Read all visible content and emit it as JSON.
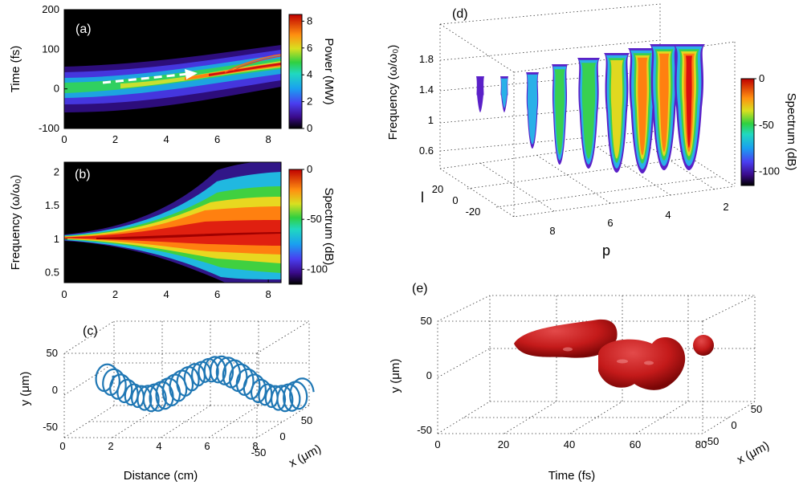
{
  "chart_data": [
    {
      "panel": "(a)",
      "type": "heatmap",
      "ylabel": "Time (fs)",
      "xlim": [
        0,
        8.5
      ],
      "ylim": [
        -100,
        200
      ],
      "xticks": [
        "0",
        "2",
        "4",
        "6",
        "8"
      ],
      "yticks": [
        "200",
        "100",
        "0",
        "-100"
      ],
      "colorbar": {
        "label": "Power (MW)",
        "range": [
          0,
          8.5
        ],
        "ticks": [
          "8",
          "6",
          "4",
          "2",
          "0"
        ]
      },
      "annotation": "dashed arrow tracing the pulse trajectory"
    },
    {
      "panel": "(b)",
      "type": "heatmap",
      "ylabel": "Frequency (ω/ω₀)",
      "xlim": [
        0,
        8.5
      ],
      "ylim": [
        0.35,
        2.15
      ],
      "xticks": [
        "0",
        "2",
        "4",
        "6",
        "8"
      ],
      "yticks": [
        "2",
        "1.5",
        "1",
        "0.5"
      ],
      "colorbar": {
        "label": "Spectrum (dB)",
        "range": [
          -115,
          0
        ],
        "ticks": [
          "0",
          "-50",
          "-100"
        ]
      }
    },
    {
      "panel": "(c)",
      "type": "line",
      "xlabel": "Distance (cm)",
      "ylabel": "y (μm)",
      "zlabel": "x (μm)",
      "xticks": [
        "0",
        "2",
        "4",
        "6",
        "8"
      ],
      "yticks": [
        "50",
        "0",
        "-50"
      ],
      "zticks": [
        "50",
        "0",
        "-50"
      ],
      "series": [
        {
          "color": "#1f77b4",
          "loops": 30
        }
      ]
    },
    {
      "panel": "(d)",
      "type": "heatmap",
      "ylabel": "Frequency (ω/ω₀)",
      "plabel": "p",
      "llabel": "l",
      "freq_ticks": [
        "1.8",
        "1.4",
        "1",
        "0.6"
      ],
      "l_ticks": [
        "20",
        "0",
        "-20"
      ],
      "p_ticks": [
        "8",
        "6",
        "4",
        "2"
      ],
      "colorbar": {
        "label": "Spectrum (dB)",
        "range": [
          -115,
          0
        ],
        "ticks": [
          "0",
          "-50",
          "-100"
        ]
      }
    },
    {
      "panel": "(e)",
      "type": "scatter",
      "xlabel": "Time (fs)",
      "ylabel": "y (μm)",
      "zlabel": "x (μm)",
      "xticks": [
        "0",
        "20",
        "40",
        "60",
        "80"
      ],
      "yticks": [
        "50",
        "0",
        "-50"
      ],
      "zticks": [
        "50",
        "0",
        "-50"
      ],
      "surface_color": "#c41a1a"
    }
  ]
}
